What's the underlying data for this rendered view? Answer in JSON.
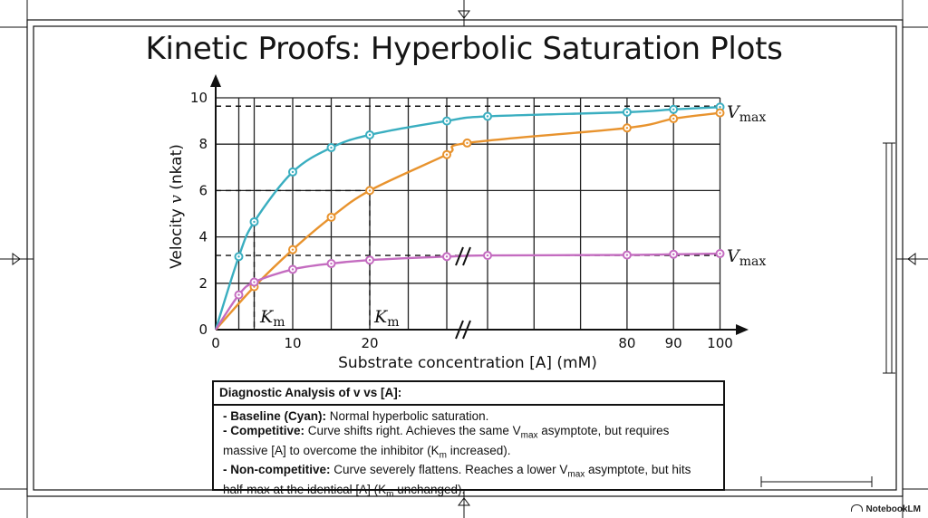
{
  "title": "Kinetic Proofs: Hyperbolic Saturation Plots",
  "chart_data": {
    "type": "line",
    "xlabel": "Substrate concentration [A] (mM)",
    "ylabel_text": "Velocity ",
    "ylabel_var": "v",
    "ylabel_unit": " (nkat)",
    "x_ticks": [
      "0",
      "10",
      "20",
      "80",
      "90",
      "100"
    ],
    "y_ticks": [
      "0",
      "2",
      "4",
      "6",
      "8",
      "10"
    ],
    "ylim": [
      0,
      10
    ],
    "axis_break": true,
    "grid": true,
    "series": [
      {
        "key": "baseline",
        "color": "#3aaec0",
        "x": [
          0,
          3,
          5,
          10,
          15,
          20,
          30,
          50,
          80,
          90,
          100
        ],
        "y": [
          0,
          3.15,
          4.65,
          6.8,
          7.85,
          8.4,
          9.0,
          9.2,
          9.38,
          9.5,
          9.6
        ]
      },
      {
        "key": "competitive",
        "color": "#e8932e",
        "x": [
          0,
          5,
          10,
          15,
          20,
          30,
          40,
          80,
          90,
          100
        ],
        "y": [
          0,
          1.85,
          3.45,
          4.85,
          6.0,
          7.55,
          8.05,
          8.7,
          9.1,
          9.35
        ]
      },
      {
        "key": "noncompetitive",
        "color": "#c46cc0",
        "x": [
          0,
          3,
          5,
          10,
          15,
          20,
          30,
          50,
          80,
          90,
          100
        ],
        "y": [
          0,
          1.5,
          2.05,
          2.6,
          2.85,
          3.0,
          3.15,
          3.2,
          3.22,
          3.25,
          3.28
        ]
      }
    ],
    "annotations": {
      "vmax_label": "V",
      "vmax_sub": "max",
      "km_label": "K",
      "km_sub": "m",
      "km_x_values": [
        5,
        20
      ],
      "vmax_y_values": [
        9.6,
        3.2
      ],
      "half_max_y": 6.0
    }
  },
  "notes": {
    "heading": "Diagnostic Analysis of v vs [A]:",
    "baseline_label": "- Baseline (Cyan):",
    "baseline_text": " Normal hyperbolic saturation.",
    "competitive_label": "- Competitive:",
    "competitive_text_1": " Curve shifts right. Achieves the same V",
    "competitive_sub_1": "max",
    "competitive_text_2": " asymptote, but requires massive [A] to overcome the inhibitor (K",
    "competitive_sub_2": "m",
    "competitive_text_3": " increased).",
    "noncomp_label": "- Non-competitive:",
    "noncomp_text_1": " Curve severely flattens. Reaches a lower V",
    "noncomp_sub_1": "max",
    "noncomp_text_2": " asymptote, but hits half-max at the identical [A] (K",
    "noncomp_sub_2": "m",
    "noncomp_text_3": " unchanged)."
  },
  "watermark": "NotebookLM"
}
